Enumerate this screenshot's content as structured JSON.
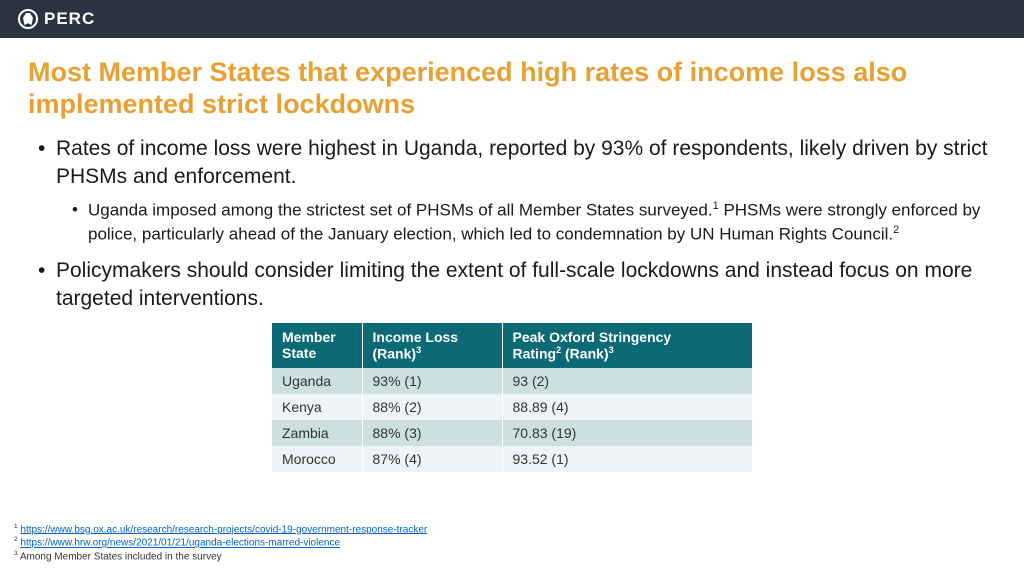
{
  "header": {
    "brand": "PERC"
  },
  "title": "Most Member States that experienced high rates of income loss also implemented strict lockdowns",
  "bullets": {
    "b1": "Rates of income loss were highest in Uganda, reported by 93% of respondents, likely driven by strict PHSMs and enforcement.",
    "b1_sub_pre": "Uganda imposed among the strictest set of PHSMs of all Member States surveyed.",
    "b1_sub_post": " PHSMs were strongly enforced by police, particularly ahead of the January election, which led to condemnation by UN Human Rights Council.",
    "b2": "Policymakers should consider limiting the extent of full-scale lockdowns and instead focus on more targeted interventions."
  },
  "table": {
    "headers": {
      "state_l1": "Member",
      "state_l2": "State",
      "loss_l1": "Income Loss",
      "loss_l2": "(Rank)",
      "strg_l1": "Peak Oxford Stringency",
      "strg_l2": "Rating",
      "strg_l3": " (Rank)"
    },
    "rows": [
      {
        "state": "Uganda",
        "loss": "93% (1)",
        "strg": "93 (2)"
      },
      {
        "state": "Kenya",
        "loss": "88% (2)",
        "strg": "88.89 (4)"
      },
      {
        "state": "Zambia",
        "loss": "88% (3)",
        "strg": "70.83 (19)"
      },
      {
        "state": "Morocco",
        "loss": "87% (4)",
        "strg": "93.52 (1)"
      }
    ]
  },
  "footnotes": {
    "f1_link": "https://www.bsg.ox.ac.uk/research/research-projects/covid-19-government-response-tracker",
    "f2_link": "https://www.hrw.org/news/2021/01/21/uganda-elections-marred-violence",
    "f3_text": "Among Member States included in the survey"
  },
  "colors": {
    "header_bg": "#2b3340",
    "title": "#e8a033",
    "table_header_bg": "#0b6a76",
    "row_odd": "#cde0e1",
    "row_even": "#eef4f5",
    "link": "#0563c1"
  }
}
